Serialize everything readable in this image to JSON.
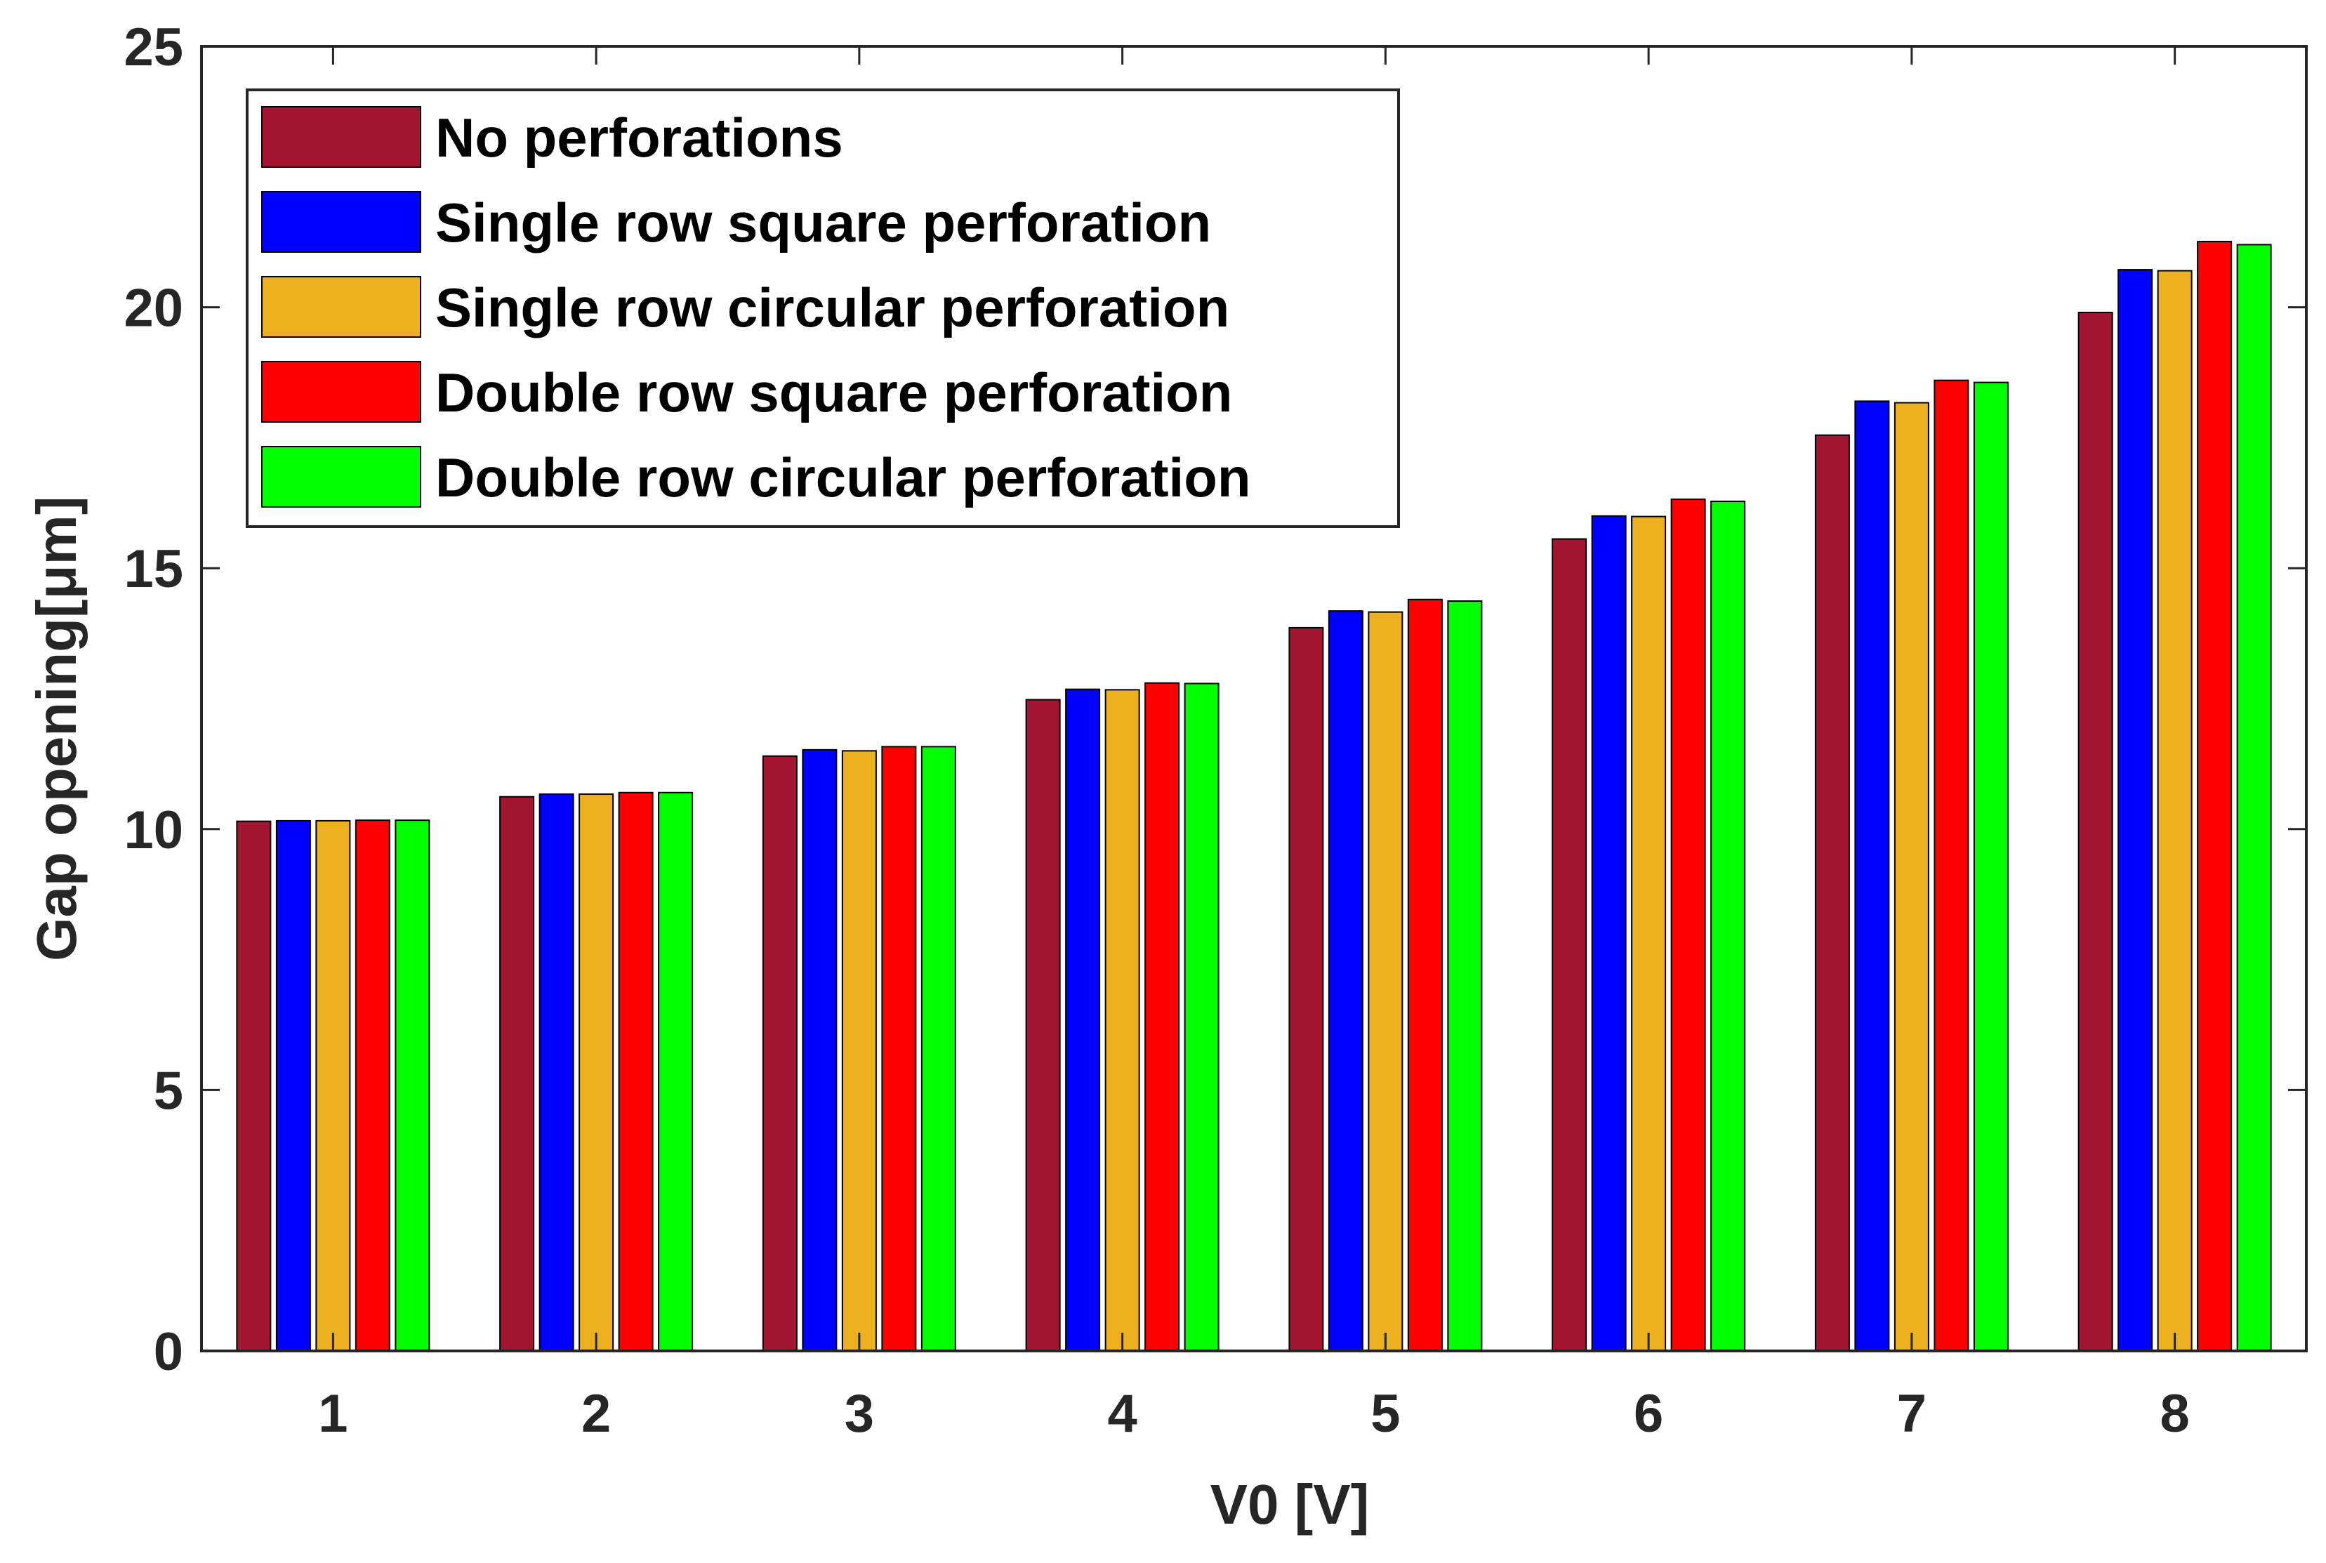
{
  "chart_data": {
    "type": "bar",
    "title": "",
    "xlabel": "V0 [V]",
    "ylabel": "Gap opening[μm]",
    "categories": [
      "1",
      "2",
      "3",
      "4",
      "5",
      "6",
      "7",
      "8"
    ],
    "ylim": [
      0,
      25
    ],
    "yticks": [
      0,
      5,
      10,
      15,
      20,
      25
    ],
    "legend_position": "top-left",
    "series": [
      {
        "name": "No perforations",
        "color": "#A2142F",
        "values": [
          10.15,
          10.62,
          11.4,
          12.48,
          13.86,
          15.56,
          17.55,
          19.9
        ]
      },
      {
        "name": "Single row square perforation",
        "color": "#0000FF",
        "values": [
          10.16,
          10.67,
          11.52,
          12.68,
          14.18,
          16.0,
          18.2,
          20.72
        ]
      },
      {
        "name": "Single row circular perforation",
        "color": "#EDB120",
        "values": [
          10.16,
          10.67,
          11.5,
          12.67,
          14.16,
          15.99,
          18.17,
          20.7
        ]
      },
      {
        "name": "Double row square perforation",
        "color": "#FF0000",
        "values": [
          10.17,
          10.7,
          11.58,
          12.8,
          14.4,
          16.32,
          18.6,
          21.26
        ]
      },
      {
        "name": "Double row circular perforation",
        "color": "#00FF00",
        "values": [
          10.17,
          10.7,
          11.58,
          12.79,
          14.37,
          16.28,
          18.56,
          21.2
        ]
      }
    ]
  }
}
